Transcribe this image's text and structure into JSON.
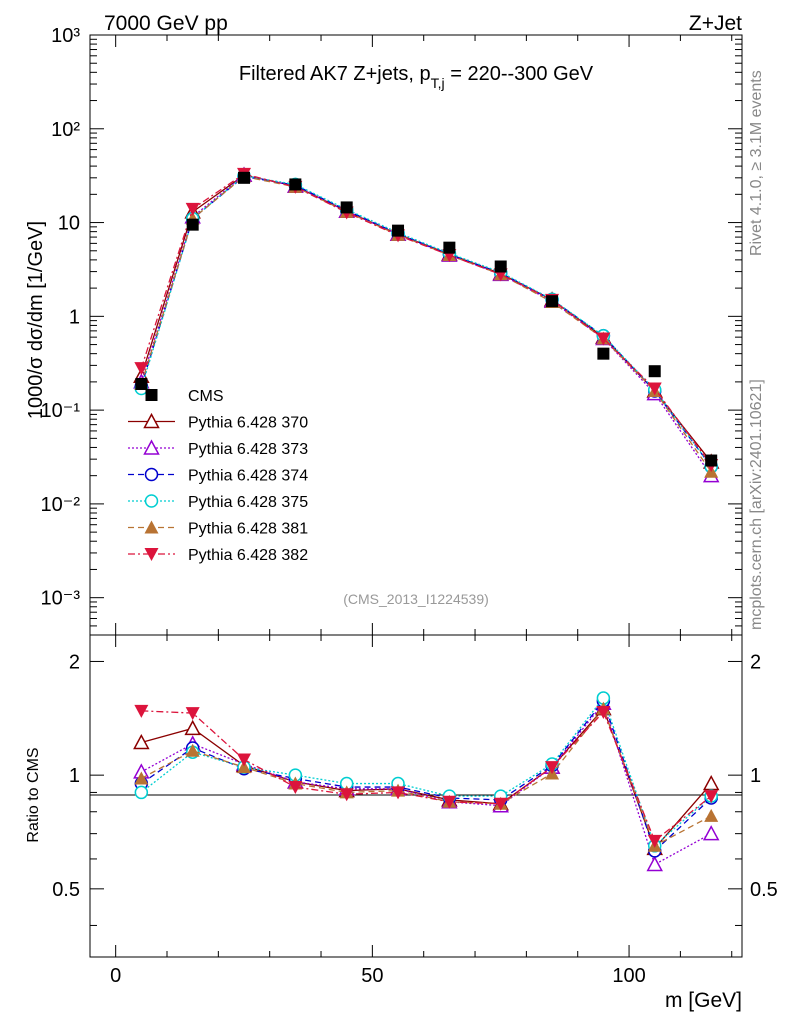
{
  "header": {
    "energy_label": "7000 GeV pp",
    "process_label": "Z+Jet",
    "rivet_label": "Rivet 4.1.0, ≥ 3.1M events",
    "mcplots_label": "mcplots.cern.ch [arXiv:2401.10621]",
    "analysis_label": "(CMS_2013_I1224539)"
  },
  "chart_data": {
    "type": "line",
    "title": "Filtered AK7 Z+jets, p_T,j = 220--300 GeV",
    "title_parts": {
      "pre": "Filtered AK7 Z+jets, p",
      "sub": "T,j",
      "post": " = 220--300 GeV"
    },
    "xlabel": "m [GeV]",
    "ylabel": "1000/σ  dσ/dm [1/GeV]",
    "ratio_ylabel": "Ratio to CMS",
    "xlim": [
      -5,
      122
    ],
    "ylim": [
      0.0004,
      1000
    ],
    "ratio_ylim": [
      0.33,
      2.35
    ],
    "x_ticks": [
      "0",
      "50",
      "100"
    ],
    "y_ticks": [
      "10⁻³",
      "10⁻²",
      "10⁻¹",
      "1",
      "10",
      "10²",
      "10³"
    ],
    "ratio_ticks": [
      "0.5",
      "1",
      "2"
    ],
    "x": [
      5,
      15,
      25,
      35,
      45,
      55,
      65,
      75,
      85,
      95,
      105,
      116
    ],
    "data": {
      "name": "CMS",
      "color": "#000000",
      "values": [
        0.19,
        9.5,
        30,
        25.5,
        14.5,
        8.2,
        5.4,
        3.4,
        1.45,
        0.4,
        0.26,
        0.029
      ]
    },
    "series": [
      {
        "name": "Pythia 6.428 370",
        "color": "#8b0000",
        "marker": "triangle-up-open",
        "dash": "",
        "values": [
          0.23,
          13,
          32,
          24.5,
          13.2,
          7.5,
          4.6,
          2.85,
          1.5,
          0.6,
          0.16,
          0.028
        ],
        "ratio": [
          1.22,
          1.33,
          1.06,
          0.96,
          0.91,
          0.92,
          0.86,
          0.84,
          1.05,
          1.5,
          0.64,
          0.95
        ]
      },
      {
        "name": "Pythia 6.428 373",
        "color": "#9400d3",
        "marker": "triangle-up-open",
        "dash": "2,2",
        "values": [
          0.2,
          11.5,
          32,
          24.5,
          13.2,
          7.5,
          4.5,
          2.8,
          1.45,
          0.58,
          0.15,
          0.02
        ],
        "ratio": [
          1.02,
          1.21,
          1.07,
          0.96,
          0.92,
          0.92,
          0.85,
          0.83,
          1.05,
          1.55,
          0.58,
          0.7
        ]
      },
      {
        "name": "Pythia 6.428 374",
        "color": "#0000cd",
        "marker": "circle-open",
        "dash": "6,4",
        "values": [
          0.18,
          11,
          31,
          25,
          13.5,
          7.6,
          4.6,
          2.9,
          1.5,
          0.62,
          0.16,
          0.025
        ],
        "ratio": [
          0.95,
          1.18,
          1.04,
          0.98,
          0.93,
          0.93,
          0.87,
          0.86,
          1.06,
          1.57,
          0.63,
          0.87
        ]
      },
      {
        "name": "Pythia 6.428 375",
        "color": "#00ced1",
        "marker": "circle-open",
        "dash": "2,2",
        "values": [
          0.17,
          11,
          31.5,
          25.5,
          13.8,
          7.8,
          4.7,
          2.95,
          1.52,
          0.62,
          0.165,
          0.025
        ],
        "ratio": [
          0.9,
          1.15,
          1.05,
          1.0,
          0.95,
          0.95,
          0.88,
          0.88,
          1.07,
          1.6,
          0.65,
          0.88
        ]
      },
      {
        "name": "Pythia 6.428 381",
        "color": "#b87333",
        "marker": "triangle-up-filled",
        "dash": "6,4",
        "values": [
          0.19,
          11,
          31,
          24,
          13,
          7.4,
          4.5,
          2.8,
          1.42,
          0.58,
          0.16,
          0.022
        ],
        "ratio": [
          0.98,
          1.16,
          1.05,
          0.95,
          0.9,
          0.91,
          0.85,
          0.84,
          1.01,
          1.5,
          0.65,
          0.78
        ]
      },
      {
        "name": "Pythia 6.428 382",
        "color": "#dc143c",
        "marker": "triangle-down-filled",
        "dash": "7,3,2,3",
        "values": [
          0.28,
          14,
          33,
          24,
          12.8,
          7.3,
          4.5,
          2.8,
          1.5,
          0.58,
          0.17,
          0.026
        ],
        "ratio": [
          1.48,
          1.46,
          1.1,
          0.93,
          0.89,
          0.9,
          0.85,
          0.84,
          1.05,
          1.47,
          0.67,
          0.88
        ]
      }
    ]
  }
}
